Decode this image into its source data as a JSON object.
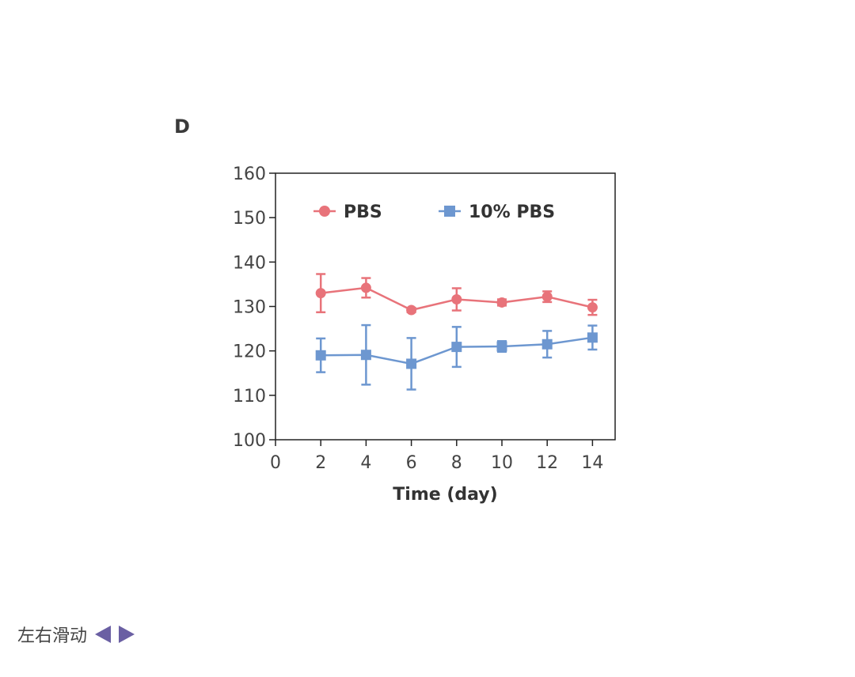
{
  "panel_label": "D",
  "slider": {
    "label": "左右滑动",
    "left_icon": "triangle-left-icon",
    "right_icon": "triangle-right-icon",
    "arrow_color": "#6a5fa3"
  },
  "chart_data": {
    "type": "line",
    "xlabel": "Time (day)",
    "ylabel": "",
    "xlim": [
      0,
      15
    ],
    "ylim": [
      100,
      160
    ],
    "xticks": [
      0,
      2,
      4,
      6,
      8,
      10,
      12,
      14
    ],
    "yticks": [
      100,
      110,
      120,
      130,
      140,
      150,
      160
    ],
    "x": [
      2,
      4,
      6,
      8,
      10,
      12,
      14
    ],
    "legend_position": "top",
    "grid": false,
    "series": [
      {
        "name": "PBS",
        "marker": "circle",
        "color": "#e8737a",
        "values": [
          133,
          134.2,
          129.2,
          131.6,
          130.9,
          132.2,
          129.8
        ],
        "errors": [
          4.3,
          2.2,
          0.5,
          2.5,
          0.7,
          1.2,
          1.7
        ]
      },
      {
        "name": "10% PBS",
        "marker": "square",
        "color": "#6d97d0",
        "values": [
          119,
          119.1,
          117.1,
          120.9,
          121,
          121.5,
          123
        ],
        "errors": [
          3.8,
          6.7,
          5.8,
          4.5,
          1.2,
          3,
          2.7
        ]
      }
    ]
  }
}
